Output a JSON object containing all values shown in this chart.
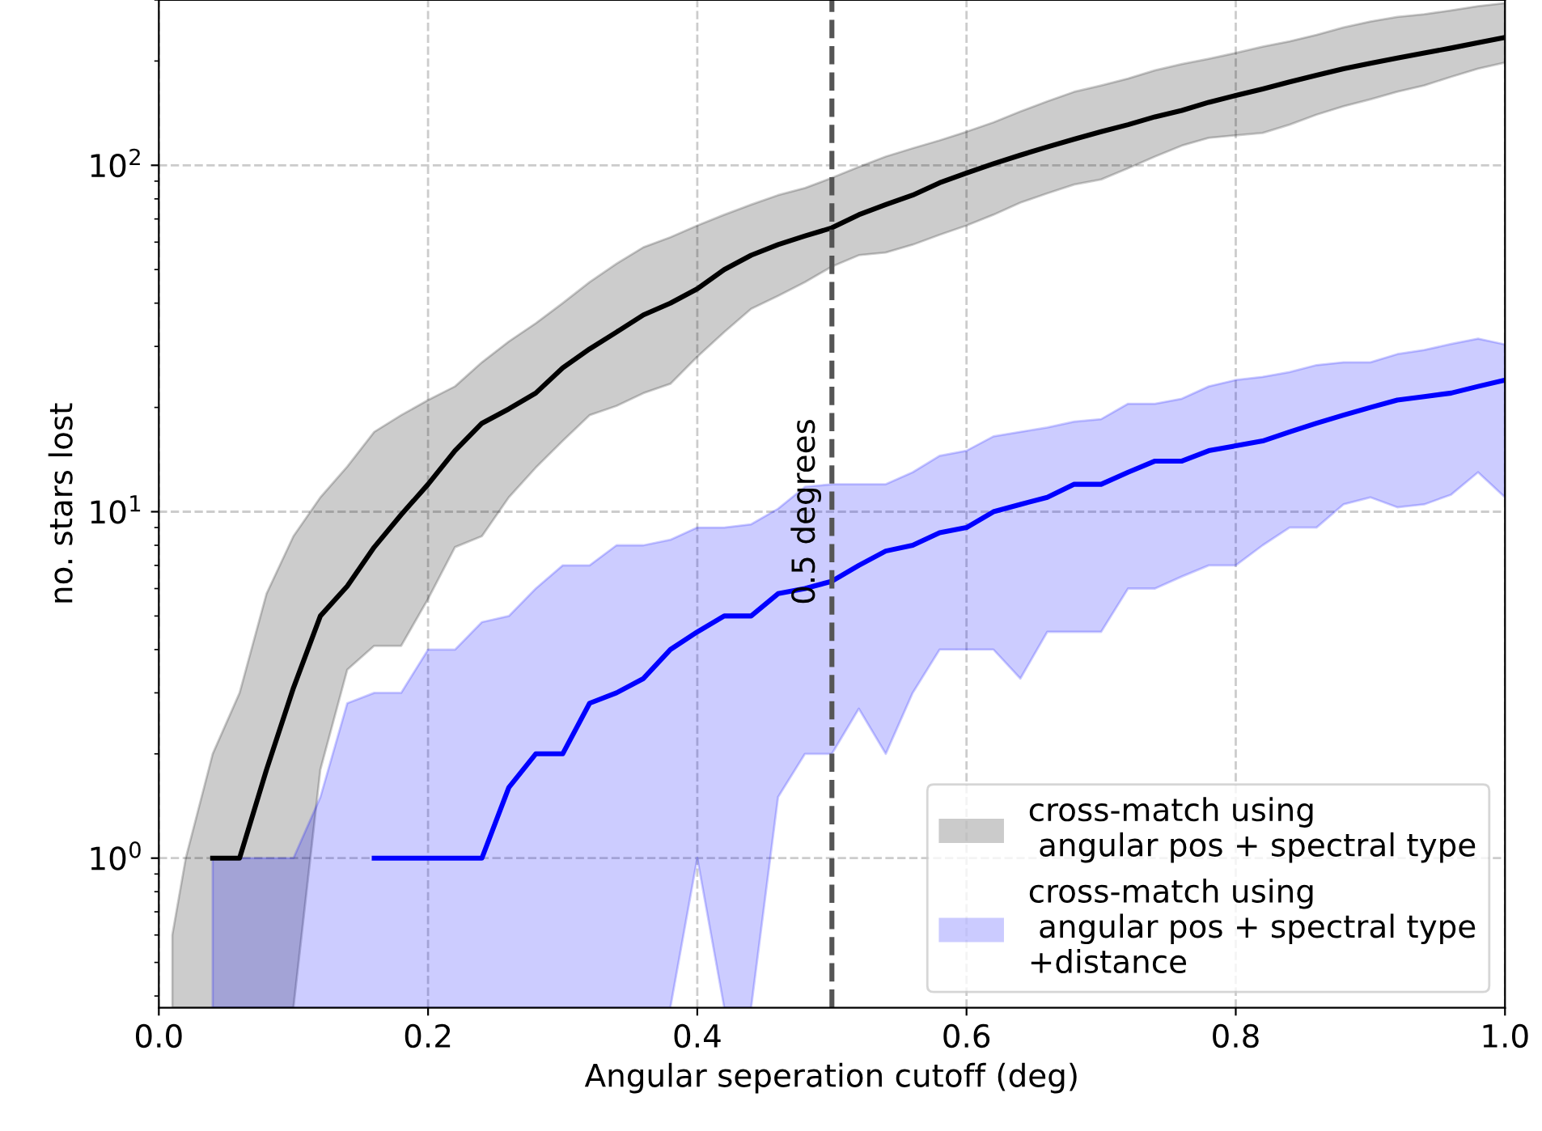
{
  "chart_data": {
    "type": "line",
    "xlabel": "Angular seperation cutoff (deg)",
    "ylabel": "no. stars lost",
    "xlim": [
      0,
      1
    ],
    "ylim": [
      0.37,
      300
    ],
    "log": "y",
    "xticks": [
      {
        "value": 0,
        "label": "0.0"
      },
      {
        "value": 0.2,
        "label": "0.2"
      },
      {
        "value": 0.4,
        "label": "0.4"
      },
      {
        "value": 0.6,
        "label": "0.6"
      },
      {
        "value": 0.8,
        "label": "0.8"
      },
      {
        "value": 1,
        "label": "1.0"
      }
    ],
    "yticks": [
      {
        "value": 1,
        "label": "10$^{0}$"
      },
      {
        "value": 10,
        "label": "10$^{1}$"
      },
      {
        "value": 100,
        "label": "10$^{2}$"
      }
    ],
    "grid": true,
    "legend": "bottom right",
    "line_style": "solid",
    "marker": "none",
    "ref_lines": [
      {
        "axis": "x",
        "value": 0.5,
        "label": "0.5 degrees",
        "color": "#555555",
        "line_style": "dashed"
      }
    ],
    "x": [
      0.01,
      0.02,
      0.04,
      0.06,
      0.08,
      0.1,
      0.12,
      0.14,
      0.16,
      0.18,
      0.2,
      0.22,
      0.24,
      0.26,
      0.28,
      0.3,
      0.32,
      0.34,
      0.36,
      0.38,
      0.4,
      0.42,
      0.44,
      0.46,
      0.48,
      0.5,
      0.52,
      0.54,
      0.56,
      0.58,
      0.6,
      0.62,
      0.64,
      0.66,
      0.68,
      0.7,
      0.72,
      0.74,
      0.76,
      0.78,
      0.8,
      0.82,
      0.84,
      0.86,
      0.88,
      0.9,
      0.92,
      0.94,
      0.96,
      0.98,
      1.0
    ],
    "series": [
      {
        "name": "cross-match using\n angular pos + spectral type",
        "color": "#000000",
        "values": [
          null,
          null,
          1,
          1,
          1.8,
          3.1,
          5.0,
          6.1,
          7.9,
          9.8,
          12,
          15,
          18,
          19.8,
          22,
          26,
          29.5,
          33,
          37,
          40,
          44,
          50,
          55,
          59,
          62.5,
          66,
          72,
          77,
          82,
          89,
          95,
          101,
          107,
          113,
          119,
          125,
          131,
          138,
          144,
          152,
          159,
          166,
          174,
          182,
          190,
          197,
          204,
          211,
          218,
          226,
          234
        ],
        "upper": [
          0.6,
          1,
          2,
          3,
          5.8,
          8.5,
          11,
          13.5,
          17,
          19,
          21,
          23,
          27,
          31,
          35,
          40,
          46,
          52,
          58,
          62,
          67,
          72,
          77,
          82,
          86,
          92,
          99,
          106,
          112,
          118,
          125,
          133,
          143,
          153,
          163,
          170,
          178,
          188,
          196,
          203,
          211,
          220,
          228,
          238,
          250,
          260,
          268,
          273,
          280,
          288,
          294
        ],
        "lower": [
          0.37,
          0.37,
          0.37,
          0.37,
          0.37,
          0.37,
          1.8,
          3.5,
          4.1,
          4.1,
          5.6,
          7.9,
          8.5,
          11,
          13.4,
          16,
          19,
          20.2,
          22,
          23.4,
          28,
          33,
          38.5,
          42,
          46,
          51,
          55,
          56,
          59,
          63,
          67,
          72,
          78,
          83,
          88,
          91,
          98,
          106,
          114,
          120,
          122,
          124,
          131,
          140,
          148,
          155,
          163,
          170,
          180,
          190,
          198
        ]
      },
      {
        "name": "cross-match using\n angular pos + spectral type\n+distance",
        "color": "#0000ff",
        "values": [
          null,
          null,
          null,
          null,
          null,
          null,
          null,
          null,
          1,
          1,
          1,
          1,
          1,
          1.6,
          2,
          2,
          2.8,
          3,
          3.3,
          4,
          4.5,
          5,
          5,
          5.8,
          6,
          6.3,
          7,
          7.7,
          8,
          8.7,
          9,
          10,
          10.5,
          11,
          12,
          12,
          13,
          14,
          14,
          15,
          15.5,
          16,
          17,
          18,
          19,
          20,
          21,
          21.5,
          22,
          23,
          24
        ],
        "upper": [
          null,
          null,
          1,
          1,
          1,
          1,
          1.5,
          2.8,
          3,
          3,
          4,
          4,
          4.8,
          5,
          6,
          7,
          7,
          8,
          8,
          8.3,
          9,
          9,
          9.2,
          10.2,
          11.8,
          12,
          12,
          12,
          13,
          14.5,
          15,
          16.5,
          17,
          17.5,
          18.2,
          18.5,
          20.5,
          20.5,
          21.2,
          23,
          24,
          24.5,
          25.3,
          26.5,
          27,
          27,
          28.5,
          29.3,
          30.5,
          31.6,
          30.4
        ],
        "lower": [
          null,
          null,
          0.37,
          0.37,
          0.37,
          0.37,
          0.37,
          0.37,
          0.37,
          0.37,
          0.37,
          0.37,
          0.37,
          0.37,
          0.37,
          0.37,
          0.37,
          0.37,
          0.37,
          0.37,
          1,
          0.37,
          0.37,
          1.5,
          2,
          2,
          2.7,
          2,
          3,
          4,
          4,
          4,
          3.3,
          4.5,
          4.5,
          4.5,
          6,
          6,
          6.5,
          7,
          7,
          8,
          9,
          9,
          10.5,
          11,
          10.3,
          10.5,
          11.2,
          13,
          11
        ]
      }
    ]
  }
}
